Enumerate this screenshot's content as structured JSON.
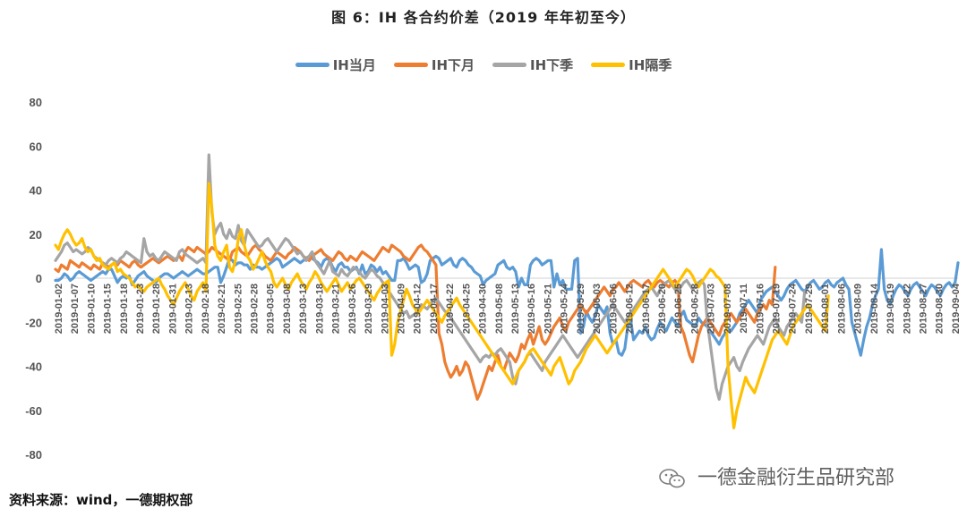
{
  "title": "图 6：IH 各合约价差（2019 年年初至今）",
  "source": "资料来源：wind，一德期权部",
  "watermark": "一德金融衍生品研究部",
  "watermark_icon": "wechat-icon",
  "chart_data": {
    "type": "line",
    "title": "图 6：IH 各合约价差（2019 年年初至今）",
    "ylim": [
      -80,
      80
    ],
    "yticks": [
      80,
      60,
      40,
      20,
      0,
      -20,
      -40,
      -60,
      -80
    ],
    "ytick_labels": [
      "80",
      "60",
      "40",
      "20",
      "0",
      "-20",
      "-40",
      "-60",
      "-80"
    ],
    "legend_position": "top-center",
    "grid": false,
    "x_ticks": [
      "2019-01-02",
      "2019-01-07",
      "2019-01-10",
      "2019-01-15",
      "2019-01-18",
      "2019-01-23",
      "2019-01-28",
      "2019-01-31",
      "2019-02-13",
      "2019-02-18",
      "2019-02-21",
      "2019-02-25",
      "2019-02-28",
      "2019-03-05",
      "2019-03-08",
      "2019-03-13",
      "2019-03-18",
      "2019-03-21",
      "2019-03-26",
      "2019-03-29",
      "2019-04-03",
      "2019-04-09",
      "2019-04-12",
      "2019-04-17",
      "2019-04-22",
      "2019-04-25",
      "2019-04-30",
      "2019-05-08",
      "2019-05-13",
      "2019-05-16",
      "2019-05-21",
      "2019-05-24",
      "2019-05-29",
      "2019-06-03",
      "2019-06-06",
      "2019-06-12",
      "2019-06-17",
      "2019-06-20",
      "2019-06-25",
      "2019-06-28",
      "2019-07-03",
      "2019-07-08",
      "2019-07-11",
      "2019-07-16",
      "2019-07-19",
      "2019-07-24",
      "2019-07-29",
      "2019-08-01",
      "2019-08-06",
      "2019-08-09",
      "2019-08-14",
      "2019-08-19",
      "2019-08-22",
      "2019-08-27",
      "2019-08-30",
      "2019-09-04"
    ],
    "series": [
      {
        "name": "IH当月",
        "color": "#5B9BD5",
        "values": [
          -1,
          -1,
          0,
          2,
          1,
          -1,
          0,
          2,
          3,
          2,
          1,
          0,
          -1,
          0,
          1,
          2,
          3,
          2,
          4,
          4,
          1,
          -2,
          0,
          1,
          0,
          1,
          -3,
          -1,
          1,
          2,
          3,
          1,
          0,
          -1,
          -2,
          0,
          1,
          2,
          2,
          1,
          0,
          1,
          2,
          3,
          2,
          1,
          2,
          3,
          4,
          3,
          2,
          2,
          3,
          4,
          5,
          5,
          -2,
          1,
          5,
          9,
          8,
          6,
          7,
          7,
          6,
          6,
          4,
          6,
          5,
          5,
          4,
          5,
          6,
          7,
          8,
          9,
          8,
          5,
          6,
          7,
          8,
          9,
          8,
          7,
          8,
          9,
          10,
          9,
          8,
          7,
          5,
          8,
          9,
          8,
          5,
          3,
          6,
          7,
          5,
          5,
          3,
          4,
          5,
          2,
          6,
          2,
          3,
          6,
          5,
          3,
          5,
          2,
          3,
          1,
          -1,
          -1,
          8,
          8,
          9,
          7,
          4,
          5,
          6,
          5,
          -2,
          -1,
          2,
          8,
          9,
          10,
          9,
          6,
          7,
          8,
          9,
          6,
          5,
          8,
          9,
          8,
          6,
          5,
          3,
          2,
          1,
          -3,
          -1,
          0,
          1,
          2,
          6,
          7,
          8,
          5,
          4,
          5,
          3,
          -4,
          0,
          -3,
          -3,
          6,
          8,
          9,
          8,
          6,
          7,
          8,
          8,
          -4,
          2,
          -3,
          -1,
          -5,
          -5,
          -5,
          8,
          9,
          -25,
          -22,
          -15,
          -18,
          -20,
          -17,
          -12,
          -14,
          -16,
          -13,
          -25,
          -30,
          -28,
          -34,
          -35,
          -32,
          -22,
          -19,
          -28,
          -26,
          -24,
          -25,
          -22,
          -26,
          -28,
          -27,
          -23,
          -20,
          -22,
          -24,
          -21,
          -18,
          -20,
          -22,
          -17,
          -15,
          -19,
          -20,
          -21,
          -22,
          -18,
          -20,
          -21,
          -22,
          -24,
          -26,
          -28,
          -30,
          -27,
          -25,
          -23,
          -24,
          -22,
          -20,
          -16,
          -14,
          -12,
          -10,
          -12,
          -14,
          -16,
          -10,
          -8,
          -6,
          -5,
          -4,
          -6,
          -8,
          -10,
          -8,
          -5,
          -3,
          -2,
          -1,
          -3,
          -5,
          -6,
          -4,
          -2,
          -1,
          -3,
          -5,
          -4,
          -2,
          -1,
          -3,
          -4,
          -2,
          -1,
          0,
          -3,
          -5,
          -20,
          -25,
          -30,
          -35,
          -28,
          -22,
          -18,
          -12,
          -8,
          -5,
          13,
          -5,
          -10,
          -12,
          -8,
          -5,
          -3,
          -4,
          -6,
          -8,
          -5,
          -3,
          -2,
          -4,
          -6,
          -8,
          -5,
          -3,
          -4,
          -6,
          -8,
          -5,
          -3,
          -2,
          -4,
          -2,
          7
        ]
      },
      {
        "name": "IH下月",
        "color": "#ED7D31",
        "values": [
          4,
          3,
          6,
          5,
          4,
          8,
          7,
          6,
          5,
          7,
          6,
          5,
          4,
          6,
          5,
          4,
          7,
          6,
          5,
          6,
          7,
          6,
          8,
          7,
          6,
          5,
          7,
          8,
          6,
          5,
          6,
          7,
          8,
          9,
          8,
          7,
          8,
          9,
          10,
          9,
          8,
          9,
          10,
          8,
          12,
          14,
          13,
          12,
          14,
          13,
          12,
          11,
          12,
          14,
          13,
          12,
          11,
          10,
          9,
          8,
          12,
          13,
          14,
          12,
          11,
          10,
          12,
          14,
          15,
          13,
          12,
          10,
          9,
          8,
          10,
          12,
          11,
          10,
          9,
          11,
          12,
          14,
          13,
          12,
          10,
          9,
          8,
          10,
          11,
          12,
          13,
          11,
          10,
          9,
          8,
          10,
          12,
          11,
          9,
          8,
          10,
          9,
          8,
          10,
          12,
          11,
          10,
          9,
          8,
          10,
          12,
          14,
          13,
          12,
          15,
          14,
          13,
          12,
          10,
          9,
          8,
          10,
          12,
          14,
          15,
          13,
          12,
          10,
          8,
          6,
          -25,
          -30,
          -38,
          -42,
          -45,
          -43,
          -40,
          -44,
          -42,
          -38,
          -40,
          -45,
          -50,
          -55,
          -52,
          -48,
          -44,
          -40,
          -42,
          -38,
          -35,
          -40,
          -42,
          -38,
          -34,
          -36,
          -38,
          -35,
          -30,
          -32,
          -28,
          -25,
          -30,
          -26,
          -22,
          -28,
          -30,
          -28,
          -25,
          -22,
          -20,
          -18,
          -22,
          -24,
          -20,
          -18,
          -16,
          -14,
          -12,
          -14,
          -16,
          -14,
          -12,
          -10,
          -8,
          -6,
          -4,
          -6,
          -8,
          -5,
          -4,
          -2,
          -4,
          -6,
          -4,
          -2,
          -1,
          -2,
          -3,
          -4,
          -2,
          -1,
          -3,
          -4,
          -2,
          -1,
          -2,
          -3,
          -4,
          -2,
          -1,
          -3,
          -22,
          -25,
          -30,
          -35,
          -38,
          -32,
          -26,
          -22,
          -20,
          -18,
          -20,
          -22,
          -24,
          -26,
          -22,
          -20,
          -18,
          -16,
          -18,
          -20,
          -18,
          -16,
          -14,
          -16,
          -18,
          -20,
          -16,
          -14,
          -12,
          -14,
          -10,
          -12,
          5
        ]
      },
      {
        "name": "IH下季",
        "color": "#A5A5A5",
        "values": [
          8,
          10,
          12,
          15,
          16,
          14,
          12,
          13,
          12,
          11,
          12,
          14,
          13,
          10,
          9,
          8,
          7,
          6,
          8,
          9,
          8,
          7,
          9,
          10,
          12,
          11,
          10,
          9,
          8,
          7,
          18,
          12,
          10,
          11,
          9,
          8,
          10,
          12,
          11,
          10,
          9,
          8,
          12,
          13,
          11,
          10,
          9,
          8,
          7,
          8,
          9,
          7,
          56,
          30,
          20,
          23,
          25,
          20,
          18,
          22,
          19,
          18,
          24,
          17,
          15,
          22,
          20,
          18,
          16,
          14,
          15,
          17,
          18,
          16,
          14,
          12,
          14,
          16,
          18,
          17,
          15,
          13,
          11,
          12,
          10,
          8,
          10,
          12,
          8,
          6,
          4,
          2,
          5,
          8,
          3,
          2,
          1,
          4,
          2,
          1,
          3,
          5,
          4,
          3,
          1,
          0,
          2,
          4,
          3,
          1,
          0,
          -2,
          -4,
          -6,
          -8,
          -10,
          -12,
          -14,
          -16,
          -15,
          -18,
          -17,
          -16,
          -14,
          -12,
          -13,
          -14,
          -12,
          -10,
          -9,
          -11,
          -13,
          -15,
          -16,
          -18,
          -20,
          -22,
          -24,
          -26,
          -28,
          -30,
          -32,
          -34,
          -36,
          -38,
          -36,
          -35,
          -36,
          -34,
          -35,
          -33,
          -32,
          -34,
          -36,
          -38,
          -45,
          -48,
          -42,
          -40,
          -38,
          -35,
          -34,
          -36,
          -38,
          -40,
          -42,
          -38,
          -36,
          -34,
          -32,
          -30,
          -28,
          -26,
          -28,
          -30,
          -32,
          -34,
          -36,
          -34,
          -32,
          -30,
          -28,
          -26,
          -24,
          -22,
          -20,
          -18,
          -16,
          -14,
          -12,
          -14,
          -16,
          -18,
          -20,
          -18,
          -16,
          -14,
          -12,
          -10,
          -8,
          -6,
          -5,
          -4,
          -6,
          -8,
          -5,
          -3,
          -2,
          -1,
          -3,
          -5,
          -6,
          -4,
          -2,
          -1,
          -3,
          -5,
          -4,
          -2,
          -1,
          -3,
          -20,
          -30,
          -40,
          -50,
          -55,
          -48,
          -44,
          -40,
          -38,
          -36,
          -40,
          -42,
          -38,
          -35,
          -32,
          -30,
          -28,
          -26,
          -28,
          -30,
          -26,
          -22,
          -20,
          -18,
          -22,
          -24,
          -26,
          -22,
          -20,
          -18,
          -16,
          -18,
          -20,
          -6
        ]
      },
      {
        "name": "IH隔季",
        "color": "#FFC000",
        "values": [
          15,
          13,
          17,
          20,
          22,
          20,
          17,
          15,
          16,
          18,
          14,
          12,
          13,
          10,
          8,
          9,
          6,
          5,
          4,
          6,
          7,
          3,
          4,
          2,
          1,
          0,
          -2,
          -4,
          -3,
          -5,
          -6,
          -4,
          -3,
          -2,
          -1,
          0,
          -3,
          -5,
          -8,
          -10,
          -12,
          -9,
          -6,
          -4,
          -2,
          -5,
          -8,
          -10,
          -6,
          -4,
          -2,
          -6,
          43,
          32,
          15,
          10,
          8,
          12,
          15,
          5,
          3,
          8,
          18,
          22,
          15,
          10,
          8,
          4,
          6,
          9,
          12,
          8,
          5,
          3,
          -2,
          -4,
          -2,
          0,
          -3,
          -5,
          -2,
          0,
          2,
          -1,
          -3,
          -5,
          -2,
          0,
          3,
          1,
          -2,
          -4,
          -6,
          -4,
          -2,
          0,
          -3,
          -6,
          -4,
          -2,
          -5,
          -3,
          -1,
          0,
          -2,
          -4,
          -6,
          -8,
          -10,
          -7,
          -5,
          -3,
          -2,
          -1,
          -35,
          -30,
          -20,
          -15,
          -10,
          -5,
          -8,
          -12,
          -14,
          -16,
          -14,
          -12,
          -10,
          -12,
          -14,
          -16,
          -18,
          -20,
          -17,
          -15,
          -13,
          -11,
          -9,
          -12,
          -14,
          -16,
          -18,
          -20,
          -22,
          -24,
          -26,
          -28,
          -30,
          -32,
          -34,
          -36,
          -38,
          -40,
          -42,
          -44,
          -46,
          -48,
          -45,
          -42,
          -40,
          -38,
          -35,
          -33,
          -32,
          -34,
          -36,
          -38,
          -40,
          -42,
          -44,
          -40,
          -38,
          -36,
          -40,
          -44,
          -48,
          -46,
          -42,
          -40,
          -38,
          -35,
          -32,
          -30,
          -28,
          -26,
          -28,
          -30,
          -32,
          -34,
          -32,
          -30,
          -28,
          -26,
          -24,
          -22,
          -20,
          -18,
          -16,
          -14,
          -12,
          -10,
          -8,
          -6,
          -4,
          -2,
          0,
          2,
          4,
          2,
          0,
          -2,
          -4,
          -2,
          0,
          2,
          4,
          3,
          1,
          -2,
          -4,
          -2,
          0,
          2,
          4,
          3,
          1,
          0,
          -2,
          -4,
          -40,
          -55,
          -68,
          -60,
          -55,
          -50,
          -45,
          -48,
          -50,
          -52,
          -48,
          -44,
          -40,
          -36,
          -32,
          -28,
          -26,
          -24,
          -26,
          -28,
          -30,
          -26,
          -22,
          -20,
          -18,
          -16,
          -14,
          -12,
          -14,
          -16,
          -18,
          -20,
          -22,
          -24,
          -8
        ]
      }
    ]
  }
}
